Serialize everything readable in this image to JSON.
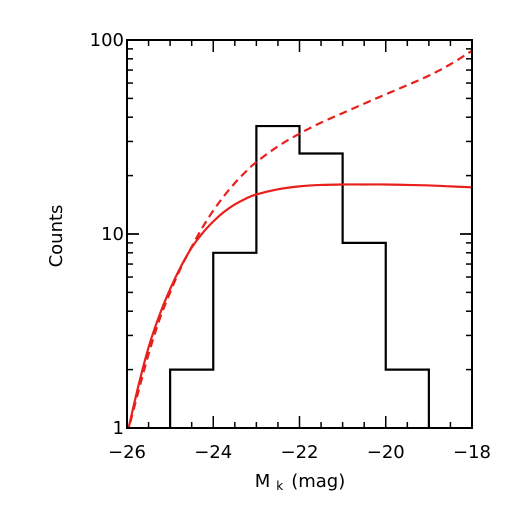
{
  "chart_data": {
    "type": "line",
    "xlabel": "M",
    "xlabel_sub": "k",
    "xlabel_unit": "(mag)",
    "ylabel": "Counts",
    "xlim": [
      -26,
      -18
    ],
    "ylim": [
      1,
      100
    ],
    "yscale": "log",
    "x_ticks": [
      -26,
      -24,
      -22,
      -20,
      -18
    ],
    "x_tick_labels": [
      "−26",
      "−24",
      "−22",
      "−20",
      "−18"
    ],
    "y_ticks": [
      1,
      10,
      100
    ],
    "y_tick_labels": [
      "1",
      "10",
      "100"
    ],
    "grid": false,
    "histogram": {
      "bin_edges": [
        -25,
        -24,
        -23,
        -22,
        -21,
        -20,
        -19
      ],
      "counts": [
        2,
        8,
        36,
        26,
        9,
        2
      ],
      "color": "#000000"
    },
    "series": [
      {
        "style": "solid",
        "color": "#e8201c",
        "x": [
          -26.0,
          -25.75,
          -25.5,
          -25.25,
          -25.0,
          -24.75,
          -24.5,
          -24.25,
          -24.0,
          -23.75,
          -23.5,
          -23.25,
          -23.0,
          -22.5,
          -22.0,
          -21.5,
          -21.0,
          -20.5,
          -20.0,
          -19.5,
          -19.0,
          -18.5,
          -18.0
        ],
        "y": [
          0.92,
          1.6,
          2.6,
          3.8,
          5.2,
          6.8,
          8.5,
          10.1,
          11.6,
          13.0,
          14.2,
          15.2,
          16.0,
          17.0,
          17.6,
          17.9,
          18.0,
          18.0,
          18.0,
          17.9,
          17.8,
          17.6,
          17.4
        ]
      },
      {
        "style": "dashed",
        "color": "#e8201c",
        "x": [
          -26.0,
          -25.75,
          -25.5,
          -25.25,
          -25.0,
          -24.75,
          -24.5,
          -24.25,
          -24.0,
          -23.75,
          -23.5,
          -23.25,
          -23.0,
          -22.5,
          -22.0,
          -21.5,
          -21.0,
          -20.5,
          -20.0,
          -19.5,
          -19.0,
          -18.5,
          -18.0
        ],
        "y": [
          0.92,
          1.5,
          2.4,
          3.6,
          5.0,
          6.7,
          8.6,
          10.8,
          13.2,
          15.7,
          18.3,
          20.9,
          23.5,
          28.3,
          32.9,
          37.5,
          42.0,
          47.0,
          52.5,
          58.5,
          65.5,
          75.0,
          88.0
        ]
      }
    ]
  }
}
